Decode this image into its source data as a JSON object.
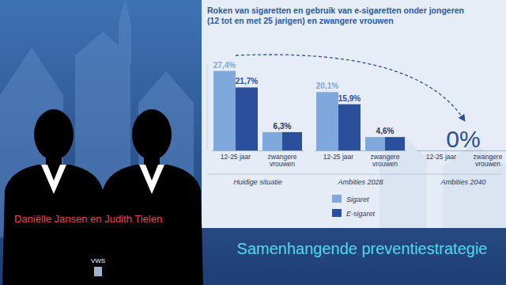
{
  "chart_data": {
    "type": "bar",
    "title": "Roken van sigaretten en gebruik van e-sigaretten onder jongeren\n(12 tot en met 25 jarigen) en zwangere vrouwen",
    "categories": [
      "12-25 jaar",
      "zwangere vrouwen",
      "12-25 jaar",
      "zwangere vrouwen",
      "12-25 jaar",
      "zwangere vrouwen"
    ],
    "group_labels": [
      "Huidige situatie",
      "Ambities 2028",
      "Ambities 2040"
    ],
    "series": [
      {
        "name": "Sigaret",
        "color": "#7fa8dc",
        "values": [
          27.4,
          6.3,
          20.1,
          4.6,
          0,
          0
        ],
        "value_labels": [
          "27,4%",
          "6,3%",
          "20,1%",
          "4,6%",
          null,
          null
        ]
      },
      {
        "name": "E-sigaret",
        "color": "#2b4f9a",
        "values": [
          21.7,
          6.3,
          15.9,
          4.6,
          0,
          0
        ],
        "value_labels": [
          "21,7%",
          null,
          "15,9%",
          null,
          null,
          null
        ]
      }
    ],
    "annotations": [
      {
        "text": "0%",
        "category": "Ambities 2040"
      }
    ],
    "ylim": [
      0,
      30
    ],
    "data_labels": true,
    "tick_labels": "x",
    "legend": "bottom"
  },
  "caption": "Daniëlle Jansen en Judith Tielen",
  "logo": "VWS",
  "banner": "Samenhangende preventiestrategie"
}
